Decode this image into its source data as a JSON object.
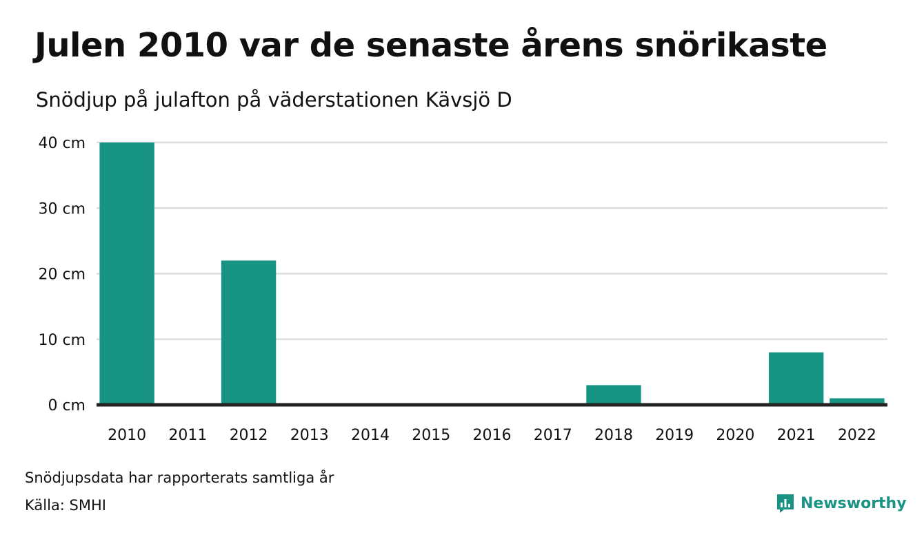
{
  "title": "Julen 2010 var de senaste årens snörikaste",
  "subtitle": "Snödjup på julafton på väderstationen Kävsjö D",
  "footer": {
    "note": "Snödjupsdata har rapporterats samtliga år",
    "source": "Källa: SMHI",
    "brand": "Newsworthy",
    "brand_icon": "bar-chart-speech-bubble-icon"
  },
  "colors": {
    "bar": "#189485",
    "grid": "#dddddd",
    "baseline": "#222222",
    "brand": "#1a9385"
  },
  "chart_data": {
    "type": "bar",
    "categories": [
      "2010",
      "2011",
      "2012",
      "2013",
      "2014",
      "2015",
      "2016",
      "2017",
      "2018",
      "2019",
      "2020",
      "2021",
      "2022"
    ],
    "values": [
      40,
      0,
      22,
      0,
      0,
      0,
      0,
      0,
      3,
      0,
      0,
      8,
      1
    ],
    "ylim": [
      0,
      40
    ],
    "yticks": [
      0,
      10,
      20,
      30,
      40
    ],
    "ytick_labels": [
      "0 cm",
      "10 cm",
      "20 cm",
      "30 cm",
      "40 cm"
    ],
    "grid": true,
    "unit": "cm"
  }
}
